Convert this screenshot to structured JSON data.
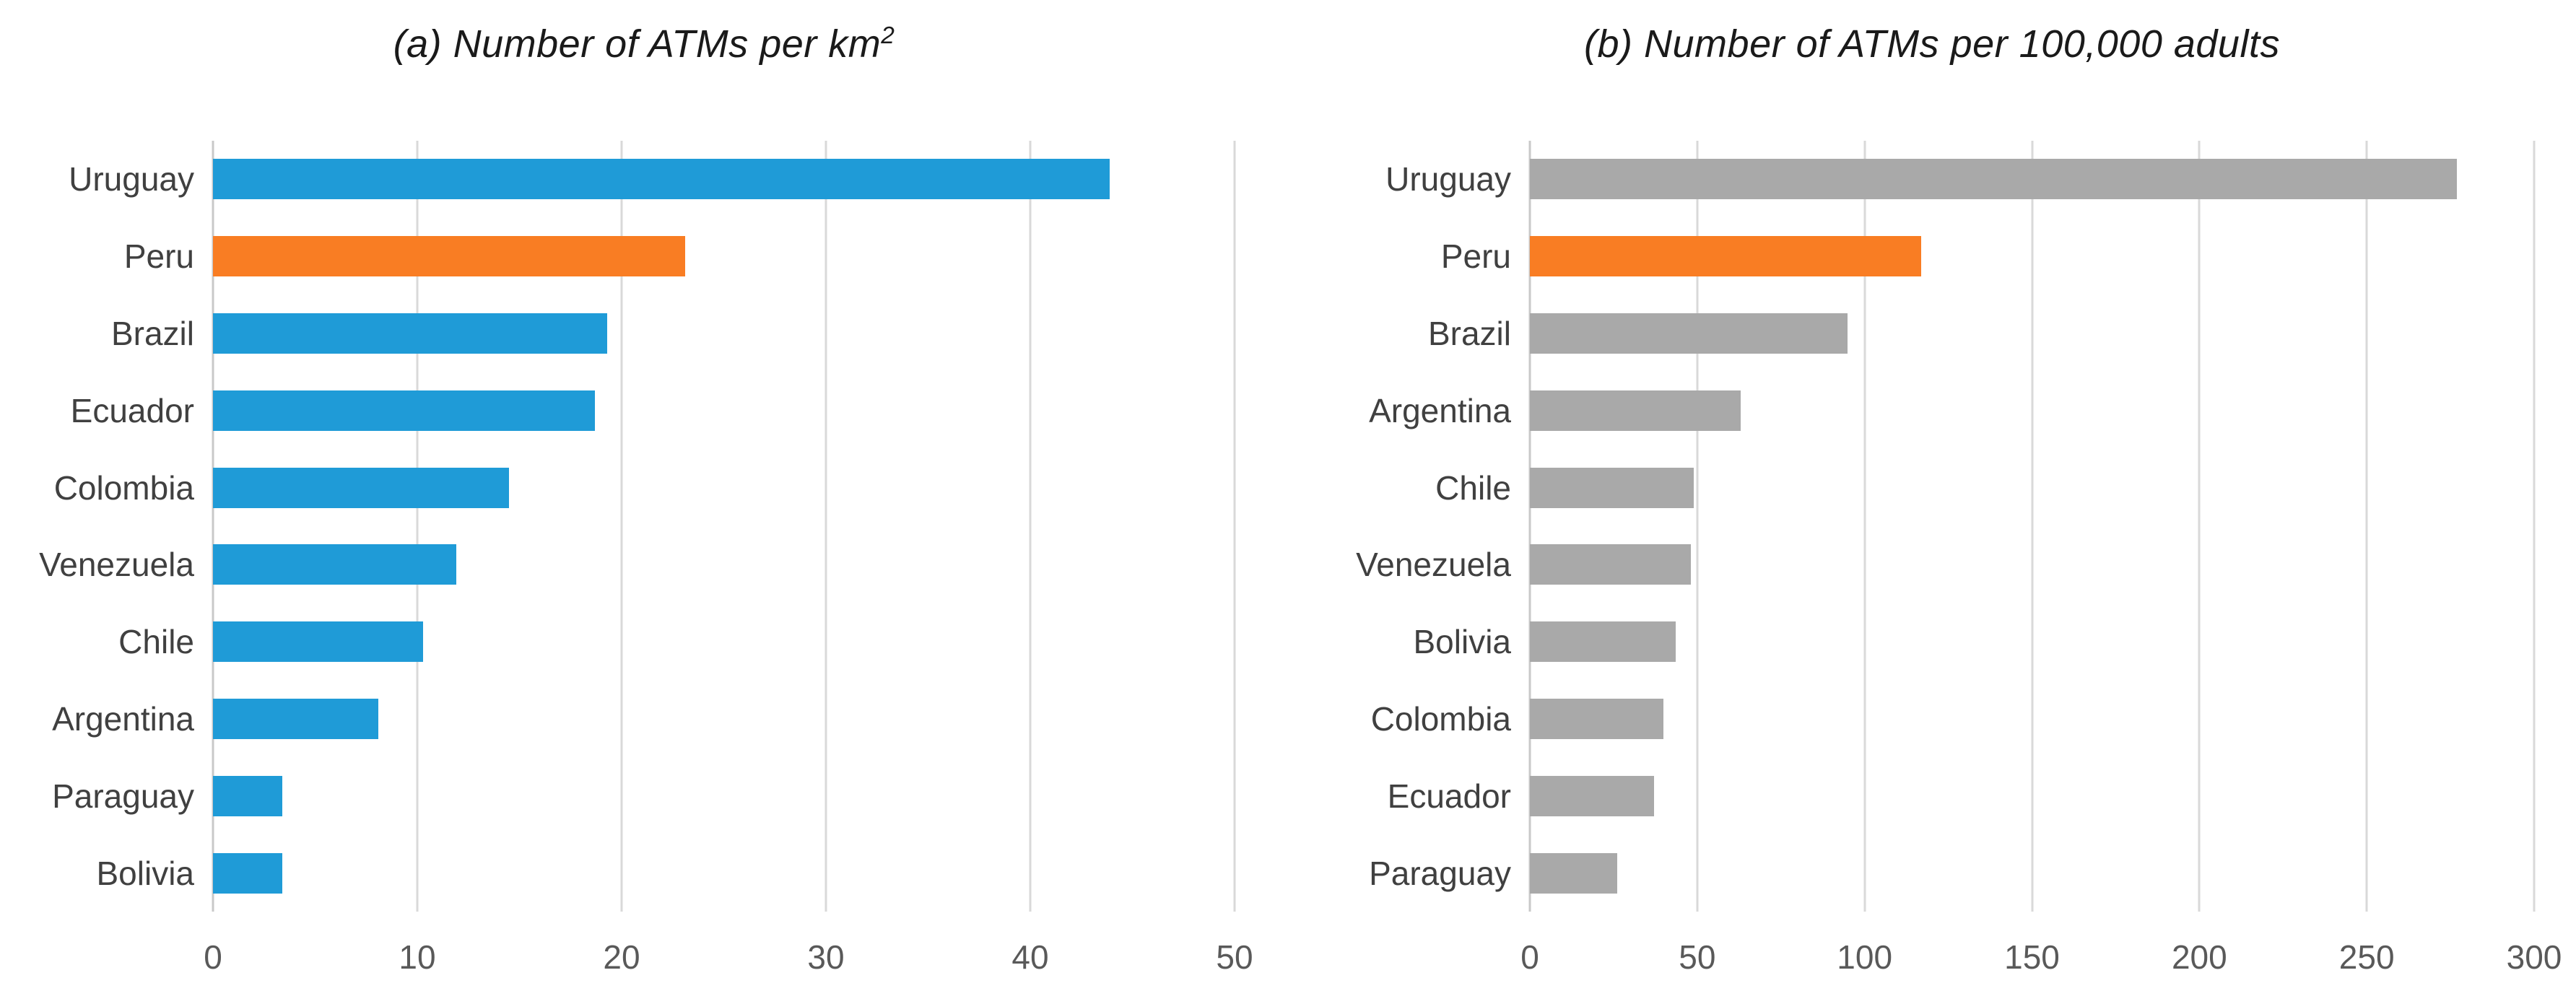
{
  "figure": {
    "charts": [
      {
        "title_prefix": "(a) Number of ATMs per km",
        "title_superscript": "2"
      },
      {
        "title_prefix": "(b) Number of ATMs per 100,000 adults",
        "title_superscript": ""
      }
    ]
  },
  "chart_data": [
    {
      "type": "bar",
      "orientation": "horizontal",
      "title": "(a) Number of ATMs per km²",
      "categories": [
        "Uruguay",
        "Peru",
        "Brazil",
        "Ecuador",
        "Colombia",
        "Venezuela",
        "Chile",
        "Argentina",
        "Paraguay",
        "Bolivia"
      ],
      "values": [
        43.9,
        23.1,
        19.3,
        18.7,
        14.5,
        11.9,
        10.3,
        8.1,
        3.4,
        3.4
      ],
      "xlim": [
        0,
        50
      ],
      "xticks": [
        0,
        10,
        20,
        30,
        40,
        50
      ],
      "grid": true,
      "legend": "none",
      "default_color": "#1f9bd7",
      "highlight": {
        "category": "Peru",
        "color": "#f97d23"
      }
    },
    {
      "type": "bar",
      "orientation": "horizontal",
      "title": "(b) Number of ATMs per 100,000 adults",
      "categories": [
        "Uruguay",
        "Peru",
        "Brazil",
        "Argentina",
        "Chile",
        "Venezuela",
        "Bolivia",
        "Colombia",
        "Ecuador",
        "Paraguay"
      ],
      "values": [
        277,
        117,
        95,
        63,
        49,
        48,
        43.5,
        40,
        37,
        26
      ],
      "xlim": [
        0,
        300
      ],
      "xticks": [
        0,
        50,
        100,
        150,
        200,
        250,
        300
      ],
      "grid": true,
      "legend": "none",
      "default_color": "#a9a9a9",
      "highlight": {
        "category": "Peru",
        "color": "#f97d23"
      }
    }
  ],
  "colors": {
    "blue": "#1f9bd7",
    "orange": "#f97d23",
    "gray": "#a9a9a9",
    "gridline": "#d9d9d9",
    "category_label": "#404040",
    "tick_label": "#595959",
    "title": "#1a1a1a"
  }
}
